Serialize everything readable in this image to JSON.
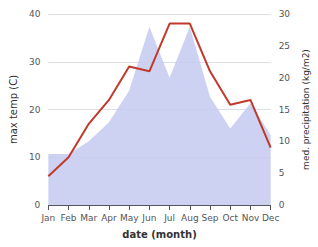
{
  "chart_data": {
    "type": "line",
    "categories": [
      "Jan",
      "Feb",
      "Mar",
      "Apr",
      "May",
      "Jun",
      "Jul",
      "Aug",
      "Sep",
      "Oct",
      "Nov",
      "Dec"
    ],
    "xlabel": "date (month)",
    "ylabel": "max temp (C)",
    "y2label": "med. precipitation (kg/m2)",
    "series": [
      {
        "type": "area",
        "color": "#c5caf0",
        "axis": "y2",
        "values": [
          8,
          8,
          10,
          13,
          18,
          28,
          20,
          28,
          17,
          12,
          16,
          11
        ]
      },
      {
        "type": "line",
        "color": "#c0392b",
        "values": [
          6,
          10,
          17,
          22,
          29,
          28,
          38,
          38,
          28,
          21,
          22,
          12
        ]
      }
    ],
    "ylim": [
      0,
      40
    ],
    "yticks": [
      0,
      10,
      20,
      30,
      40
    ],
    "y2lim": [
      0,
      30
    ],
    "y2ticks": [
      0,
      5,
      10,
      15,
      20,
      25,
      30
    ],
    "grid": true
  }
}
